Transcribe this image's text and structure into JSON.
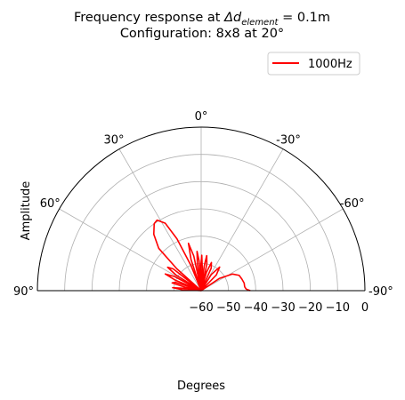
{
  "chart_data": {
    "type": "polar",
    "title_prefix": "Frequency response at ",
    "title_symbol": "Δd",
    "title_subscript": "element",
    "title_suffix": " = 0.1m",
    "subtitle": "Configuration: 8x8 at 20°",
    "ylabel": "Amplitude",
    "xlabel": "Degrees",
    "legend_position": "upper-right",
    "grid": true,
    "theta_ticks": [
      {
        "angle": 0,
        "label": "0°"
      },
      {
        "angle": 30,
        "label": "30°"
      },
      {
        "angle": -30,
        "label": "-30°"
      },
      {
        "angle": 60,
        "label": "60°"
      },
      {
        "angle": -60,
        "label": "-60°"
      },
      {
        "angle": 90,
        "label": "90°"
      },
      {
        "angle": -90,
        "label": "-90°"
      }
    ],
    "r_ticks": [
      -60,
      -50,
      -40,
      -30,
      -20,
      -10,
      0
    ],
    "r_tick_labels": [
      "−60",
      "−50",
      "−40",
      "−30",
      "−20",
      "−10",
      "0"
    ],
    "rlim": [
      -60,
      0
    ],
    "series": [
      {
        "name": "1000Hz",
        "color": "#ff0000",
        "points": [
          [
            90,
            -60
          ],
          [
            87,
            -53
          ],
          [
            84,
            -49.5
          ],
          [
            81,
            -55
          ],
          [
            80,
            -60
          ],
          [
            78,
            -54
          ],
          [
            75,
            -49
          ],
          [
            72,
            -50
          ],
          [
            70,
            -60
          ],
          [
            68,
            -50
          ],
          [
            65,
            -45.5
          ],
          [
            62,
            -49
          ],
          [
            60,
            -60
          ],
          [
            58,
            -49
          ],
          [
            55,
            -45
          ],
          [
            52,
            -47
          ],
          [
            50,
            -60
          ],
          [
            48,
            -48
          ],
          [
            45,
            -38
          ],
          [
            40,
            -33
          ],
          [
            35,
            -30
          ],
          [
            32,
            -29.5
          ],
          [
            28,
            -32
          ],
          [
            25,
            -39
          ],
          [
            22,
            -50
          ],
          [
            20,
            -60
          ],
          [
            18,
            -48
          ],
          [
            15,
            -42
          ],
          [
            12,
            -47
          ],
          [
            10,
            -60
          ],
          [
            8,
            -50
          ],
          [
            6,
            -45.5
          ],
          [
            4,
            -49
          ],
          [
            3,
            -60
          ],
          [
            1,
            -51
          ],
          [
            -1,
            -47
          ],
          [
            -3,
            -52
          ],
          [
            -5,
            -60
          ],
          [
            -7,
            -51
          ],
          [
            -9,
            -47
          ],
          [
            -12,
            -50
          ],
          [
            -14,
            -60
          ],
          [
            -16,
            -53
          ],
          [
            -20,
            -49
          ],
          [
            -24,
            -51
          ],
          [
            -27,
            -60
          ],
          [
            -32,
            -53
          ],
          [
            -38,
            -49
          ],
          [
            -44,
            -52
          ],
          [
            -50,
            -60
          ],
          [
            -56,
            -52
          ],
          [
            -62,
            -47
          ],
          [
            -68,
            -45
          ],
          [
            -74,
            -44.5
          ],
          [
            -80,
            -44
          ],
          [
            -85,
            -44
          ],
          [
            -88,
            -43.5
          ],
          [
            -90,
            -42
          ]
        ]
      }
    ]
  }
}
